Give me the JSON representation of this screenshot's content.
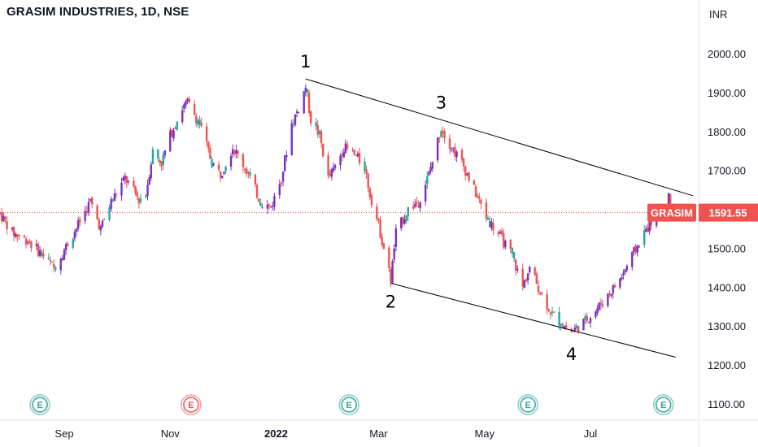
{
  "header": {
    "title": "GRASIM INDUSTRIES, 1D, NSE"
  },
  "chart_data": {
    "type": "candlestick",
    "currency_label": "INR",
    "y_ticks": [
      "2000.00",
      "1900.00",
      "1800.00",
      "1700.00",
      "1600.00",
      "1500.00",
      "1400.00",
      "1300.00",
      "1200.00",
      "1100.00"
    ],
    "y_tick_values": [
      2000,
      1900,
      1800,
      1700,
      1600,
      1500,
      1400,
      1300,
      1200,
      1100
    ],
    "ylim": [
      1090,
      2100
    ],
    "x_ticks": [
      {
        "label": "Sep",
        "bold": false
      },
      {
        "label": "Nov",
        "bold": false
      },
      {
        "label": "2022",
        "bold": true
      },
      {
        "label": "Mar",
        "bold": false
      },
      {
        "label": "May",
        "bold": false
      },
      {
        "label": "Jul",
        "bold": false
      }
    ],
    "x_tick_dates": [
      "2021-09-01",
      "2021-11-01",
      "2022-01-01",
      "2022-03-01",
      "2022-05-01",
      "2022-07-01"
    ],
    "date_range": [
      "2021-07-26",
      "2022-08-29"
    ],
    "last_price": {
      "symbol": "GRASIM",
      "value": "1591.55"
    },
    "wave_points": [
      {
        "label": "1",
        "date": "2022-01-18",
        "price": 1935
      },
      {
        "label": "2",
        "date": "2022-03-08",
        "price": 1410
      },
      {
        "label": "3",
        "date": "2022-04-06",
        "price": 1830
      },
      {
        "label": "4",
        "date": "2022-06-20",
        "price": 1275
      }
    ],
    "trendlines": [
      {
        "name": "upper",
        "from": {
          "date": "2022-01-18",
          "price": 1935
        },
        "to": {
          "date": "2022-08-29",
          "price": 1635
        }
      },
      {
        "name": "lower",
        "from": {
          "date": "2022-03-08",
          "price": 1410
        },
        "to": {
          "date": "2022-08-19",
          "price": 1220
        }
      }
    ],
    "earnings_markers": [
      {
        "date": "2021-08-18",
        "letter": "E",
        "color": "#26a69a"
      },
      {
        "date": "2021-11-13",
        "letter": "E",
        "color": "#ef5350"
      },
      {
        "date": "2022-02-12",
        "letter": "E",
        "color": "#26a69a"
      },
      {
        "date": "2022-05-26",
        "letter": "E",
        "color": "#26a69a"
      },
      {
        "date": "2022-08-12",
        "letter": "E",
        "color": "#26a69a"
      }
    ],
    "price_path": [
      [
        "2021-07-26",
        1590
      ],
      [
        "2021-08-02",
        1540
      ],
      [
        "2021-08-11",
        1520
      ],
      [
        "2021-08-18",
        1490
      ],
      [
        "2021-08-26",
        1450
      ],
      [
        "2021-08-30",
        1480
      ],
      [
        "2021-09-09",
        1560
      ],
      [
        "2021-09-16",
        1620
      ],
      [
        "2021-09-22",
        1550
      ],
      [
        "2021-09-28",
        1620
      ],
      [
        "2021-10-06",
        1680
      ],
      [
        "2021-10-14",
        1625
      ],
      [
        "2021-10-18",
        1640
      ],
      [
        "2021-10-22",
        1750
      ],
      [
        "2021-10-27",
        1720
      ],
      [
        "2021-11-01",
        1790
      ],
      [
        "2021-11-08",
        1860
      ],
      [
        "2021-11-11",
        1875
      ],
      [
        "2021-11-18",
        1820
      ],
      [
        "2021-11-25",
        1720
      ],
      [
        "2021-11-30",
        1690
      ],
      [
        "2021-12-07",
        1760
      ],
      [
        "2021-12-15",
        1700
      ],
      [
        "2021-12-23",
        1620
      ],
      [
        "2021-12-29",
        1605
      ],
      [
        "2022-01-04",
        1680
      ],
      [
        "2022-01-10",
        1820
      ],
      [
        "2022-01-14",
        1860
      ],
      [
        "2022-01-18",
        1915
      ],
      [
        "2022-01-21",
        1830
      ],
      [
        "2022-01-26",
        1790
      ],
      [
        "2022-01-31",
        1680
      ],
      [
        "2022-02-03",
        1700
      ],
      [
        "2022-02-09",
        1760
      ],
      [
        "2022-02-15",
        1740
      ],
      [
        "2022-02-21",
        1710
      ],
      [
        "2022-02-24",
        1640
      ],
      [
        "2022-03-01",
        1560
      ],
      [
        "2022-03-08",
        1420
      ],
      [
        "2022-03-11",
        1540
      ],
      [
        "2022-03-18",
        1600
      ],
      [
        "2022-03-24",
        1620
      ],
      [
        "2022-03-30",
        1690
      ],
      [
        "2022-04-06",
        1810
      ],
      [
        "2022-04-12",
        1760
      ],
      [
        "2022-04-18",
        1720
      ],
      [
        "2022-04-25",
        1650
      ],
      [
        "2022-05-02",
        1580
      ],
      [
        "2022-05-10",
        1530
      ],
      [
        "2022-05-17",
        1480
      ],
      [
        "2022-05-23",
        1400
      ],
      [
        "2022-05-27",
        1450
      ],
      [
        "2022-06-02",
        1390
      ],
      [
        "2022-06-09",
        1330
      ],
      [
        "2022-06-16",
        1300
      ],
      [
        "2022-06-20",
        1285
      ],
      [
        "2022-06-27",
        1310
      ],
      [
        "2022-07-04",
        1340
      ],
      [
        "2022-07-11",
        1380
      ],
      [
        "2022-07-18",
        1420
      ],
      [
        "2022-07-25",
        1480
      ],
      [
        "2022-08-01",
        1540
      ],
      [
        "2022-08-08",
        1590
      ],
      [
        "2022-08-15",
        1630
      ],
      [
        "2022-08-19",
        1591.55
      ]
    ],
    "up_color": "#7b2fbe",
    "down_color": "#ef5350",
    "neutral_color": "#26a69a",
    "trendline_color": "#000000",
    "last_price_color": "#ef5350",
    "grid": false
  }
}
